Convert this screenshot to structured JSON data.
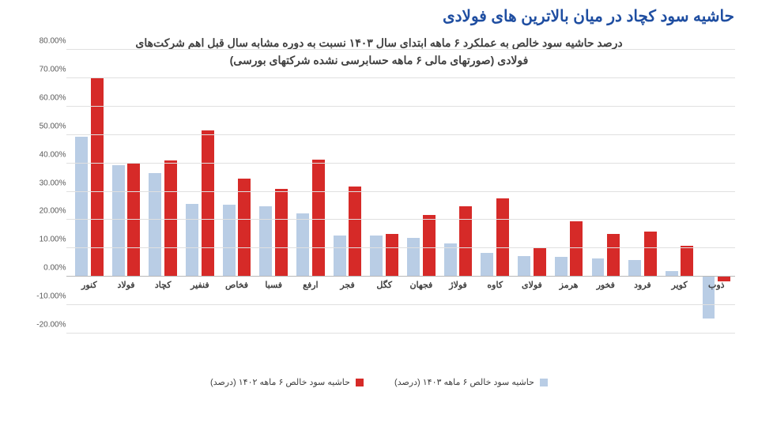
{
  "page_title": "حاشیه سود کچاد در میان بالاترین های فولادی",
  "chart": {
    "type": "bar",
    "title_line1": "درصد حاشیه سود خالص به عملکرد ۶ ماهه ابتدای سال ۱۴۰۳ نسبت به دوره مشابه سال قبل اهم شرکت‌های",
    "title_line2": "فولادی (صورتهای مالی ۶ ماهه حسابرسی نشده شرکتهای بورسی)",
    "title_fontsize": 14,
    "ylim_min": -20,
    "ylim_max": 80,
    "ytick_step": 10,
    "y_suffix": "%",
    "background_color": "#ffffff",
    "grid_color": "#e0e0e0",
    "text_color": "#404040",
    "series_a": {
      "label": "حاشیه سود خالص ۶ ماهه ۱۴۰۳ (درصد)",
      "color": "#b9cde5"
    },
    "series_b": {
      "label": "حاشیه سود خالص ۶ ماهه ۱۴۰۲ (درصد)",
      "color": "#d62a28"
    },
    "categories": [
      {
        "name": "کنور",
        "a": 49.5,
        "b": 70.3
      },
      {
        "name": "فولاد",
        "a": 39.3,
        "b": 40.1
      },
      {
        "name": "کچاد",
        "a": 36.5,
        "b": 40.9
      },
      {
        "name": "فنفیر",
        "a": 25.7,
        "b": 51.5
      },
      {
        "name": "فخاص",
        "a": 25.3,
        "b": 34.5
      },
      {
        "name": "فسبا",
        "a": 24.8,
        "b": 30.9
      },
      {
        "name": "ارفع",
        "a": 22.3,
        "b": 41.3
      },
      {
        "name": "فجر",
        "a": 14.5,
        "b": 31.9
      },
      {
        "name": "کگل",
        "a": 14.5,
        "b": 15.2
      },
      {
        "name": "فجهان",
        "a": 13.8,
        "b": 21.7
      },
      {
        "name": "فولاژ",
        "a": 11.8,
        "b": 24.8
      },
      {
        "name": "کاوه",
        "a": 8.5,
        "b": 27.6
      },
      {
        "name": "فولای",
        "a": 7.2,
        "b": 10.1
      },
      {
        "name": "هرمز",
        "a": 7.1,
        "b": 19.5
      },
      {
        "name": "فخور",
        "a": 6.4,
        "b": 15.0
      },
      {
        "name": "فرود",
        "a": 5.9,
        "b": 16.0
      },
      {
        "name": "کویر",
        "a": 2.1,
        "b": 10.8
      },
      {
        "name": "ذوب",
        "a": -14.8,
        "b": -1.7
      }
    ]
  }
}
